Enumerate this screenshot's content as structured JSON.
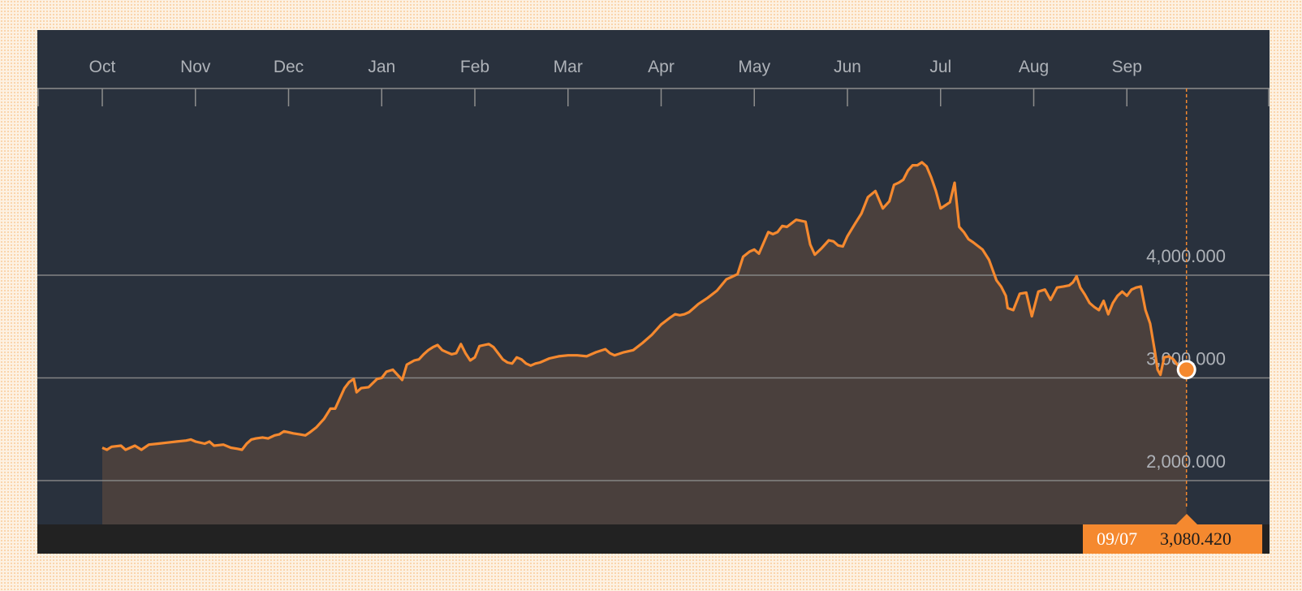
{
  "colors": {
    "panel_bg": "#29313d",
    "line": "#f5892f",
    "area_fill": "#4a403d",
    "grid": "#8d8d8d",
    "label": "#aeb2b8",
    "marker": "#f5892f",
    "readout_bg": "#f5892f"
  },
  "readout": {
    "date": "09/07",
    "value": "3,080.420"
  },
  "chart_data": {
    "type": "area",
    "grid": true,
    "x_axis_position": "top",
    "y_axis_position": "right",
    "month_labels": [
      "Oct",
      "Nov",
      "Dec",
      "Jan",
      "Feb",
      "Mar",
      "Apr",
      "May",
      "Jun",
      "Jul",
      "Aug",
      "Sep"
    ],
    "y_ticks": [
      {
        "value": 2000,
        "label": "2,000.000"
      },
      {
        "value": 3000,
        "label": "3,000.000"
      },
      {
        "value": 4000,
        "label": "4,000.000"
      }
    ],
    "y_range": [
      1700,
      5500
    ],
    "x_range": [
      0,
      11.85
    ],
    "series": [
      {
        "values": [
          [
            0,
            2320
          ],
          [
            0.05,
            2300
          ],
          [
            0.1,
            2330
          ],
          [
            0.2,
            2340
          ],
          [
            0.25,
            2300
          ],
          [
            0.35,
            2340
          ],
          [
            0.42,
            2300
          ],
          [
            0.5,
            2350
          ],
          [
            0.6,
            2360
          ],
          [
            0.7,
            2370
          ],
          [
            0.8,
            2380
          ],
          [
            0.9,
            2390
          ],
          [
            0.95,
            2400
          ],
          [
            1.0,
            2380
          ],
          [
            1.1,
            2360
          ],
          [
            1.15,
            2380
          ],
          [
            1.2,
            2340
          ],
          [
            1.3,
            2350
          ],
          [
            1.38,
            2320
          ],
          [
            1.45,
            2310
          ],
          [
            1.5,
            2300
          ],
          [
            1.55,
            2360
          ],
          [
            1.6,
            2400
          ],
          [
            1.65,
            2410
          ],
          [
            1.72,
            2420
          ],
          [
            1.78,
            2410
          ],
          [
            1.85,
            2440
          ],
          [
            1.9,
            2450
          ],
          [
            1.95,
            2480
          ],
          [
            2.0,
            2470
          ],
          [
            2.05,
            2460
          ],
          [
            2.12,
            2450
          ],
          [
            2.18,
            2440
          ],
          [
            2.23,
            2470
          ],
          [
            2.3,
            2520
          ],
          [
            2.38,
            2600
          ],
          [
            2.45,
            2700
          ],
          [
            2.5,
            2700
          ],
          [
            2.55,
            2800
          ],
          [
            2.6,
            2900
          ],
          [
            2.65,
            2960
          ],
          [
            2.7,
            2990
          ],
          [
            2.73,
            2860
          ],
          [
            2.78,
            2900
          ],
          [
            2.86,
            2910
          ],
          [
            2.95,
            2990
          ],
          [
            3.0,
            3000
          ],
          [
            3.05,
            3060
          ],
          [
            3.12,
            3080
          ],
          [
            3.18,
            3020
          ],
          [
            3.22,
            2980
          ],
          [
            3.27,
            3130
          ],
          [
            3.35,
            3170
          ],
          [
            3.4,
            3180
          ],
          [
            3.45,
            3230
          ],
          [
            3.5,
            3270
          ],
          [
            3.55,
            3300
          ],
          [
            3.6,
            3320
          ],
          [
            3.65,
            3270
          ],
          [
            3.7,
            3250
          ],
          [
            3.75,
            3230
          ],
          [
            3.8,
            3240
          ],
          [
            3.85,
            3330
          ],
          [
            3.9,
            3240
          ],
          [
            3.95,
            3170
          ],
          [
            4.0,
            3200
          ],
          [
            4.05,
            3310
          ],
          [
            4.1,
            3320
          ],
          [
            4.15,
            3330
          ],
          [
            4.2,
            3300
          ],
          [
            4.25,
            3240
          ],
          [
            4.3,
            3180
          ],
          [
            4.35,
            3150
          ],
          [
            4.4,
            3140
          ],
          [
            4.45,
            3200
          ],
          [
            4.5,
            3180
          ],
          [
            4.55,
            3140
          ],
          [
            4.6,
            3120
          ],
          [
            4.65,
            3140
          ],
          [
            4.7,
            3150
          ],
          [
            4.8,
            3190
          ],
          [
            4.9,
            3210
          ],
          [
            5.0,
            3220
          ],
          [
            5.1,
            3220
          ],
          [
            5.2,
            3210
          ],
          [
            5.3,
            3250
          ],
          [
            5.4,
            3280
          ],
          [
            5.45,
            3240
          ],
          [
            5.5,
            3220
          ],
          [
            5.6,
            3250
          ],
          [
            5.7,
            3270
          ],
          [
            5.8,
            3340
          ],
          [
            5.9,
            3420
          ],
          [
            6.0,
            3520
          ],
          [
            6.1,
            3590
          ],
          [
            6.15,
            3620
          ],
          [
            6.2,
            3610
          ],
          [
            6.25,
            3620
          ],
          [
            6.3,
            3640
          ],
          [
            6.35,
            3680
          ],
          [
            6.4,
            3720
          ],
          [
            6.5,
            3780
          ],
          [
            6.6,
            3850
          ],
          [
            6.7,
            3960
          ],
          [
            6.75,
            3980
          ],
          [
            6.82,
            4010
          ],
          [
            6.88,
            4180
          ],
          [
            6.95,
            4230
          ],
          [
            7.0,
            4250
          ],
          [
            7.05,
            4210
          ],
          [
            7.15,
            4420
          ],
          [
            7.2,
            4400
          ],
          [
            7.25,
            4420
          ],
          [
            7.3,
            4480
          ],
          [
            7.35,
            4470
          ],
          [
            7.45,
            4540
          ],
          [
            7.55,
            4520
          ],
          [
            7.6,
            4300
          ],
          [
            7.65,
            4200
          ],
          [
            7.72,
            4260
          ],
          [
            7.8,
            4340
          ],
          [
            7.85,
            4330
          ],
          [
            7.9,
            4290
          ],
          [
            7.95,
            4280
          ],
          [
            8.0,
            4380
          ],
          [
            8.08,
            4500
          ],
          [
            8.15,
            4600
          ],
          [
            8.22,
            4760
          ],
          [
            8.3,
            4820
          ],
          [
            8.38,
            4650
          ],
          [
            8.45,
            4720
          ],
          [
            8.5,
            4880
          ],
          [
            8.55,
            4900
          ],
          [
            8.6,
            4930
          ],
          [
            8.65,
            5020
          ],
          [
            8.7,
            5070
          ],
          [
            8.75,
            5070
          ],
          [
            8.8,
            5100
          ],
          [
            8.85,
            5060
          ],
          [
            8.9,
            4950
          ],
          [
            8.95,
            4820
          ],
          [
            9.0,
            4650
          ],
          [
            9.05,
            4680
          ],
          [
            9.1,
            4710
          ],
          [
            9.15,
            4900
          ],
          [
            9.2,
            4470
          ],
          [
            9.25,
            4420
          ],
          [
            9.3,
            4350
          ],
          [
            9.35,
            4320
          ],
          [
            9.45,
            4250
          ],
          [
            9.52,
            4150
          ],
          [
            9.6,
            3950
          ],
          [
            9.65,
            3890
          ],
          [
            9.7,
            3800
          ],
          [
            9.72,
            3680
          ],
          [
            9.78,
            3660
          ],
          [
            9.85,
            3820
          ],
          [
            9.92,
            3830
          ],
          [
            9.98,
            3600
          ],
          [
            10.05,
            3840
          ],
          [
            10.12,
            3860
          ],
          [
            10.18,
            3760
          ],
          [
            10.25,
            3880
          ],
          [
            10.32,
            3890
          ],
          [
            10.38,
            3900
          ],
          [
            10.42,
            3930
          ],
          [
            10.46,
            3990
          ],
          [
            10.5,
            3880
          ],
          [
            10.55,
            3810
          ],
          [
            10.6,
            3730
          ],
          [
            10.65,
            3690
          ],
          [
            10.7,
            3660
          ],
          [
            10.75,
            3750
          ],
          [
            10.8,
            3620
          ],
          [
            10.85,
            3730
          ],
          [
            10.9,
            3800
          ],
          [
            10.95,
            3840
          ],
          [
            11.0,
            3800
          ],
          [
            11.05,
            3860
          ],
          [
            11.1,
            3880
          ],
          [
            11.15,
            3890
          ],
          [
            11.2,
            3660
          ],
          [
            11.25,
            3530
          ],
          [
            11.3,
            3260
          ],
          [
            11.33,
            3080
          ],
          [
            11.36,
            3030
          ],
          [
            11.4,
            3200
          ],
          [
            11.45,
            3210
          ],
          [
            11.5,
            3180
          ],
          [
            11.55,
            3120
          ],
          [
            11.6,
            3100
          ],
          [
            11.64,
            3080.42
          ]
        ]
      }
    ]
  }
}
